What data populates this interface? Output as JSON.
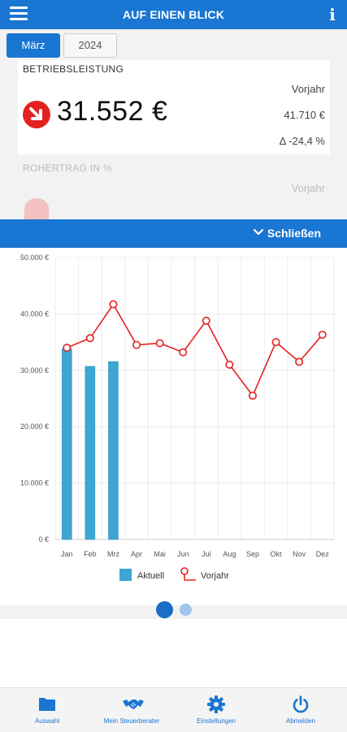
{
  "header": {
    "title": "AUF EINEN BLICK",
    "menu_icon": "hamburger-menu-icon",
    "info_icon": "info-icon"
  },
  "tabs": [
    {
      "label": "März",
      "active": true
    },
    {
      "label": "2024",
      "active": false
    }
  ],
  "kpi1": {
    "label": "BETRIEBSLEISTUNG",
    "value": "31.552 €",
    "trend": "down",
    "compare_label": "Vorjahr",
    "compare_value": "41.710 €",
    "delta": "Δ -24,4 %"
  },
  "kpi2": {
    "label": "ROHERTRAG IN %",
    "compare_label": "Vorjahr"
  },
  "chart_toggle": {
    "label": "Schließen",
    "icon": "chevron-down-icon"
  },
  "chart_data": {
    "type": "bar",
    "categories": [
      "Jan",
      "Feb",
      "Mrz",
      "Apr",
      "Mai",
      "Jun",
      "Jul",
      "Aug",
      "Sep",
      "Okt",
      "Nov",
      "Dez"
    ],
    "y_tick_labels": [
      "0 €",
      "10.000 €",
      "20.000 €",
      "30.000 €",
      "40.000 €",
      "50.000 €"
    ],
    "ylim": [
      0,
      50000
    ],
    "series": [
      {
        "name": "Aktuell",
        "type": "bar",
        "color": "#3ea6d3",
        "values": [
          33800,
          30700,
          31552,
          null,
          null,
          null,
          null,
          null,
          null,
          null,
          null,
          null
        ]
      },
      {
        "name": "Vorjahr",
        "type": "line",
        "color": "#e52020",
        "values": [
          34000,
          35700,
          41710,
          34500,
          34800,
          33200,
          38800,
          31000,
          25500,
          35000,
          31500,
          36300
        ]
      }
    ],
    "legend_position": "bottom",
    "grid": true
  },
  "pager": {
    "count": 2,
    "active": 0
  },
  "bottom_nav": [
    {
      "label": "Auswahl",
      "icon": "folder-icon"
    },
    {
      "label": "Mein Steuerberater",
      "icon": "handshake-icon"
    },
    {
      "label": "Einstellungen",
      "icon": "gear-icon"
    },
    {
      "label": "Abmelden",
      "icon": "power-icon"
    }
  ],
  "colors": {
    "primary": "#1976d2",
    "bar": "#3ea6d3",
    "line": "#e52020",
    "down": "#e52020"
  }
}
